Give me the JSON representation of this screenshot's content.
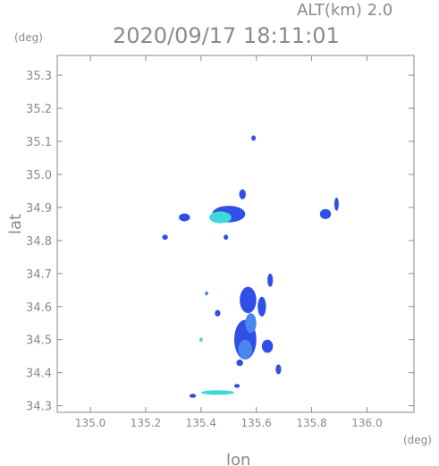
{
  "header": {
    "altitude_label": "ALT(km) 2.0",
    "timestamp": "2020/09/17 18:11:01"
  },
  "chart_data": {
    "type": "heatmap",
    "title": "2020/09/17 18:11:01",
    "subtitle": "ALT(km) 2.0",
    "xlabel": "lon",
    "ylabel": "lat",
    "x_unit": "(deg)",
    "y_unit": "(deg)",
    "xlim": [
      134.88,
      136.17
    ],
    "ylim": [
      34.28,
      35.36
    ],
    "x_ticks": [
      "135.0",
      "135.2",
      "135.4",
      "135.6",
      "135.8",
      "136.0"
    ],
    "y_ticks": [
      "34.3",
      "34.4",
      "34.5",
      "34.6",
      "34.7",
      "34.8",
      "34.9",
      "35.0",
      "35.1",
      "35.2",
      "35.3"
    ],
    "grid": false,
    "colors": {
      "low": "#2f4fe6",
      "mid": "#4a86f0",
      "high": "#3fd6dc",
      "peak": "#5de8c4",
      "axis": "#8a8a8a"
    },
    "echoes": [
      {
        "lon": 135.5,
        "lat": 34.88,
        "rx": 0.06,
        "ry": 0.025,
        "level": "low"
      },
      {
        "lon": 135.47,
        "lat": 34.87,
        "rx": 0.04,
        "ry": 0.018,
        "level": "high"
      },
      {
        "lon": 135.55,
        "lat": 34.94,
        "rx": 0.012,
        "ry": 0.015,
        "level": "low"
      },
      {
        "lon": 135.34,
        "lat": 34.87,
        "rx": 0.02,
        "ry": 0.012,
        "level": "low"
      },
      {
        "lon": 135.59,
        "lat": 35.11,
        "rx": 0.008,
        "ry": 0.008,
        "level": "low"
      },
      {
        "lon": 135.85,
        "lat": 34.88,
        "rx": 0.02,
        "ry": 0.015,
        "level": "low"
      },
      {
        "lon": 135.89,
        "lat": 34.91,
        "rx": 0.008,
        "ry": 0.02,
        "level": "low"
      },
      {
        "lon": 135.27,
        "lat": 34.81,
        "rx": 0.01,
        "ry": 0.008,
        "level": "low"
      },
      {
        "lon": 135.49,
        "lat": 34.81,
        "rx": 0.008,
        "ry": 0.008,
        "level": "low"
      },
      {
        "lon": 135.57,
        "lat": 34.62,
        "rx": 0.03,
        "ry": 0.04,
        "level": "low"
      },
      {
        "lon": 135.56,
        "lat": 34.5,
        "rx": 0.04,
        "ry": 0.06,
        "level": "low"
      },
      {
        "lon": 135.58,
        "lat": 34.55,
        "rx": 0.02,
        "ry": 0.03,
        "level": "mid"
      },
      {
        "lon": 135.56,
        "lat": 34.47,
        "rx": 0.025,
        "ry": 0.03,
        "level": "mid"
      },
      {
        "lon": 135.62,
        "lat": 34.6,
        "rx": 0.015,
        "ry": 0.03,
        "level": "low"
      },
      {
        "lon": 135.65,
        "lat": 34.68,
        "rx": 0.01,
        "ry": 0.02,
        "level": "low"
      },
      {
        "lon": 135.64,
        "lat": 34.48,
        "rx": 0.02,
        "ry": 0.02,
        "level": "low"
      },
      {
        "lon": 135.54,
        "lat": 34.43,
        "rx": 0.012,
        "ry": 0.01,
        "level": "low"
      },
      {
        "lon": 135.68,
        "lat": 34.41,
        "rx": 0.01,
        "ry": 0.015,
        "level": "low"
      },
      {
        "lon": 135.46,
        "lat": 34.58,
        "rx": 0.01,
        "ry": 0.01,
        "level": "low"
      },
      {
        "lon": 135.4,
        "lat": 34.5,
        "rx": 0.006,
        "ry": 0.006,
        "level": "high"
      },
      {
        "lon": 135.42,
        "lat": 34.64,
        "rx": 0.006,
        "ry": 0.006,
        "level": "mid"
      },
      {
        "lon": 135.46,
        "lat": 34.34,
        "rx": 0.06,
        "ry": 0.007,
        "level": "high"
      },
      {
        "lon": 135.37,
        "lat": 34.33,
        "rx": 0.012,
        "ry": 0.006,
        "level": "low"
      },
      {
        "lon": 135.53,
        "lat": 34.36,
        "rx": 0.01,
        "ry": 0.006,
        "level": "low"
      }
    ]
  }
}
